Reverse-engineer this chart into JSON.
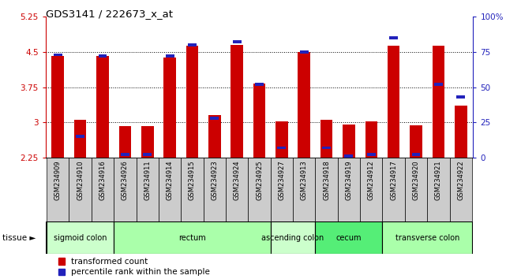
{
  "title": "GDS3141 / 222673_x_at",
  "samples": [
    "GSM234909",
    "GSM234910",
    "GSM234916",
    "GSM234926",
    "GSM234911",
    "GSM234914",
    "GSM234915",
    "GSM234923",
    "GSM234924",
    "GSM234925",
    "GSM234927",
    "GSM234913",
    "GSM234918",
    "GSM234919",
    "GSM234912",
    "GSM234917",
    "GSM234920",
    "GSM234921",
    "GSM234922"
  ],
  "red_values": [
    4.42,
    3.05,
    4.41,
    2.92,
    2.92,
    4.38,
    4.63,
    3.15,
    4.65,
    3.82,
    3.03,
    4.5,
    3.05,
    2.96,
    3.03,
    4.63,
    2.93,
    4.64,
    3.35
  ],
  "blue_values_perc": [
    73,
    15,
    72,
    2,
    2,
    72,
    80,
    28,
    82,
    52,
    7,
    75,
    7,
    1,
    2,
    85,
    2,
    52,
    43
  ],
  "ymin": 2.25,
  "ymax": 5.25,
  "yticks": [
    2.25,
    3.0,
    3.75,
    4.5,
    5.25
  ],
  "ytick_labels": [
    "2.25",
    "3",
    "3.75",
    "4.5",
    "5.25"
  ],
  "y2ticks_perc": [
    0,
    25,
    50,
    75,
    100
  ],
  "y2tick_labels": [
    "0",
    "25",
    "50",
    "75",
    "100%"
  ],
  "hlines": [
    3.0,
    3.75,
    4.5
  ],
  "tissue_groups": [
    {
      "label": "sigmoid colon",
      "start": 0,
      "end": 3,
      "color": "#ccffcc"
    },
    {
      "label": "rectum",
      "start": 3,
      "end": 10,
      "color": "#aaffaa"
    },
    {
      "label": "ascending colon",
      "start": 10,
      "end": 12,
      "color": "#ccffcc"
    },
    {
      "label": "cecum",
      "start": 12,
      "end": 15,
      "color": "#55ee77"
    },
    {
      "label": "transverse colon",
      "start": 15,
      "end": 19,
      "color": "#aaffaa"
    }
  ],
  "bar_color_red": "#cc0000",
  "bar_color_blue": "#2222bb",
  "bar_width": 0.55,
  "bg_color": "#ffffff",
  "axis_color_left": "#cc0000",
  "axis_color_right": "#2222bb",
  "legend_red_label": "transformed count",
  "legend_blue_label": "percentile rank within the sample",
  "tissue_arrow": "tissue ►",
  "xtick_bg": "#cccccc"
}
